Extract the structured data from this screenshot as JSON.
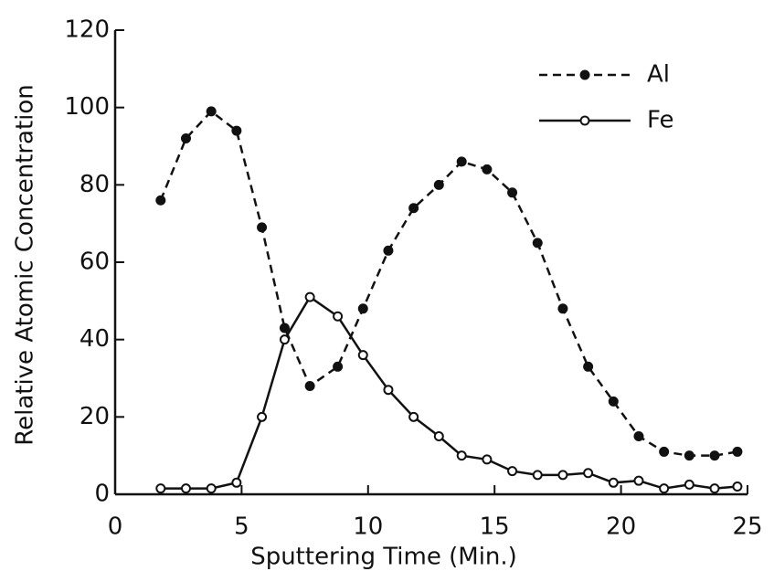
{
  "chart_data": {
    "type": "line",
    "x_label": "Sputtering Time (Min.)",
    "y_label": "Relative Atomic Concentration",
    "x": [
      1.8,
      2.8,
      3.8,
      4.8,
      5.8,
      6.7,
      7.7,
      8.8,
      9.8,
      10.8,
      11.8,
      12.8,
      13.7,
      14.7,
      15.7,
      16.7,
      17.7,
      18.7,
      19.7,
      20.7,
      21.7,
      22.7,
      23.7,
      24.6
    ],
    "series": [
      {
        "name": "Al",
        "color": "#111111",
        "dashed": true,
        "filled": true,
        "values": [
          76,
          92,
          99,
          94,
          69,
          43,
          28,
          33,
          48,
          63,
          74,
          80,
          86,
          84,
          78,
          65,
          48,
          33,
          24,
          15,
          11,
          10,
          10,
          11
        ]
      },
      {
        "name": "Fe",
        "color": "#111111",
        "dashed": false,
        "filled": false,
        "values": [
          1.5,
          1.5,
          1.5,
          3,
          20,
          40,
          51,
          46,
          36,
          27,
          20,
          15,
          10,
          9,
          6,
          5,
          5,
          5.5,
          3,
          3.5,
          1.5,
          2.5,
          1.5,
          2
        ]
      }
    ],
    "xlim": [
      0,
      25
    ],
    "xticks": [
      0,
      5,
      10,
      15,
      20,
      25
    ],
    "ylim": [
      0,
      120
    ],
    "yticks": [
      0,
      20,
      40,
      60,
      80,
      100,
      120
    ],
    "legend": "upper right"
  }
}
